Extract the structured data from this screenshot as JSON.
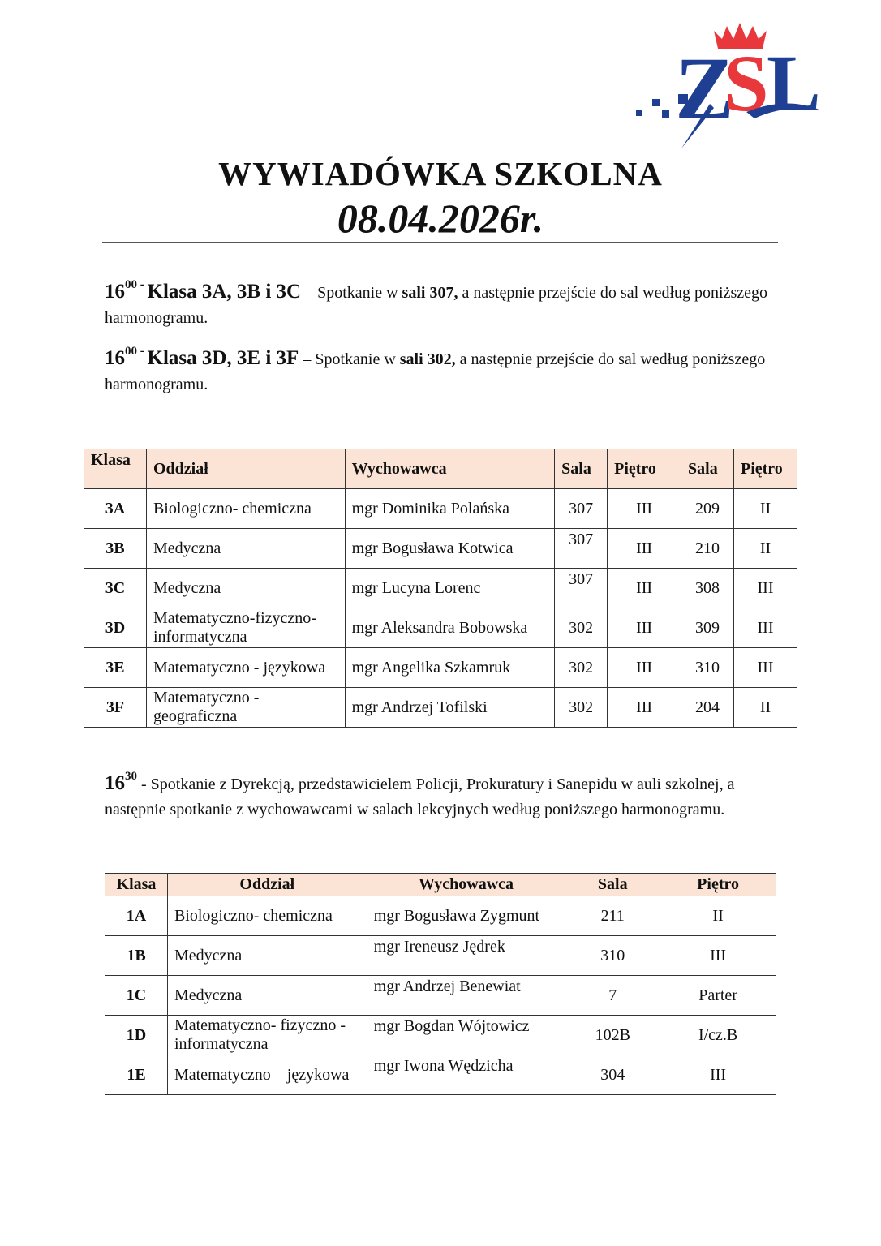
{
  "logo": {
    "text": "ZSL",
    "colors": {
      "blue": "#1f3f93",
      "red": "#e8383b"
    }
  },
  "header": {
    "title": "WYWIADÓWKA SZKOLNA",
    "date": "08.04.2026r."
  },
  "intro": [
    {
      "hour": "16",
      "minutes": "00",
      "sep": " - ",
      "classes": "Klasa 3A, 3B i 3C",
      "text1": " – Spotkanie w ",
      "room": "sali 307,",
      "text2": " a następnie przejście do sal według poniższego harmonogramu."
    },
    {
      "hour": "16",
      "minutes": "00",
      "sep": " - ",
      "classes": "Klasa 3D, 3E i 3F",
      "text1": " – Spotkanie w ",
      "room": "sali 302,",
      "text2": " a następnie przejście do sal według poniższego harmonogramu."
    }
  ],
  "table1": {
    "headers": [
      "Klasa",
      "Oddział",
      "Wychowawca",
      "Sala",
      "Piętro",
      "Sala",
      "Piętro"
    ],
    "rows": [
      [
        "3A",
        "Biologiczno- chemiczna",
        "mgr Dominika Polańska",
        "307",
        "III",
        "209",
        "II"
      ],
      [
        "3B",
        "Medyczna",
        "mgr Bogusława Kotwica",
        "307",
        "III",
        "210",
        "II"
      ],
      [
        "3C",
        "Medyczna",
        "mgr Lucyna Lorenc",
        "307",
        "III",
        "308",
        "III"
      ],
      [
        "3D",
        "Matematyczno-fizyczno-informatyczna",
        "mgr Aleksandra Bobowska",
        "302",
        "III",
        "309",
        "III"
      ],
      [
        "3E",
        "Matematyczno - językowa",
        "mgr Angelika Szkamruk",
        "302",
        "III",
        "310",
        "III"
      ],
      [
        "3F",
        "Matematyczno - geograficzna",
        "mgr Andrzej Tofilski",
        "302",
        "III",
        "204",
        "II"
      ]
    ]
  },
  "second": {
    "hour": "16",
    "minutes": "30",
    "text": " - Spotkanie z Dyrekcją, przedstawicielem Policji, Prokuratury i Sanepidu w auli szkolnej, a następnie spotkanie z wychowawcami w salach lekcyjnych według poniższego harmonogramu."
  },
  "table2": {
    "headers": [
      "Klasa",
      "Oddział",
      "Wychowawca",
      "Sala",
      "Piętro"
    ],
    "rows": [
      [
        "1A",
        "Biologiczno- chemiczna",
        "mgr Bogusława Zygmunt",
        "211",
        "II"
      ],
      [
        "1B",
        "Medyczna",
        "mgr Ireneusz Jędrek",
        "310",
        "III"
      ],
      [
        "1C",
        "Medyczna",
        "mgr Andrzej Benewiat",
        "7",
        "Parter"
      ],
      [
        "1D",
        "Matematyczno- fizyczno -informatyczna",
        "mgr Bogdan Wójtowicz",
        "102B",
        "I/cz.B"
      ],
      [
        "1E",
        "Matematyczno – językowa",
        "mgr Iwona Wędzicha",
        "304",
        "III"
      ]
    ]
  }
}
